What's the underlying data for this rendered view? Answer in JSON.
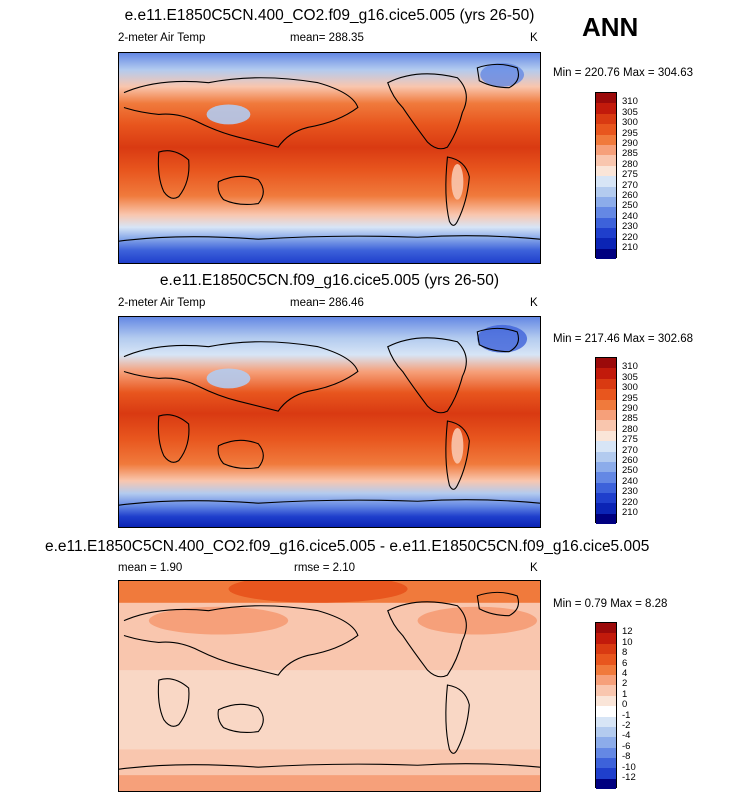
{
  "season": "ANN",
  "units": "K",
  "panels": [
    {
      "title": "e.e11.E1850C5CN.400_CO2.f09_g16.cice5.005 (yrs 26-50)",
      "left_label": "2-meter Air Temp",
      "mean_text": "mean= 288.35",
      "units": "K",
      "minmax_text": "Min = 220.76 Max = 304.63",
      "colorbar": {
        "labels": [
          "310",
          "305",
          "300",
          "295",
          "290",
          "285",
          "280",
          "275",
          "270",
          "260",
          "250",
          "240",
          "230",
          "220",
          "210"
        ],
        "colors": [
          "#9b0a0a",
          "#c21a0b",
          "#d93a12",
          "#e8561e",
          "#f07a3c",
          "#f6a07a",
          "#f9c6ae",
          "#fae5d8",
          "#d7e5f6",
          "#b3cbef",
          "#8cacea",
          "#6488e4",
          "#3d62da",
          "#1f3fcc",
          "#0b24b5",
          "#000080"
        ]
      }
    },
    {
      "title": "e.e11.E1850C5CN.f09_g16.cice5.005 (yrs 26-50)",
      "left_label": "2-meter Air Temp",
      "mean_text": "mean= 286.46",
      "units": "K",
      "minmax_text": "Min = 217.46 Max = 302.68",
      "colorbar": {
        "labels": [
          "310",
          "305",
          "300",
          "295",
          "290",
          "285",
          "280",
          "275",
          "270",
          "260",
          "250",
          "240",
          "230",
          "220",
          "210"
        ],
        "colors": [
          "#9b0a0a",
          "#c21a0b",
          "#d93a12",
          "#e8561e",
          "#f07a3c",
          "#f6a07a",
          "#f9c6ae",
          "#fae5d8",
          "#d7e5f6",
          "#b3cbef",
          "#8cacea",
          "#6488e4",
          "#3d62da",
          "#1f3fcc",
          "#0b24b5",
          "#000080"
        ]
      }
    },
    {
      "title": "e.e11.E1850C5CN.400_CO2.f09_g16.cice5.005 - e.e11.E1850C5CN.f09_g16.cice5.005",
      "left_label": "mean =   1.90",
      "mean_text": "rmse =   2.10",
      "units": "K",
      "minmax_text": "Min =  0.79 Max =   8.28",
      "colorbar": {
        "labels": [
          "12",
          "10",
          "8",
          "6",
          "4",
          "2",
          "1",
          "0",
          "-1",
          "-2",
          "-4",
          "-6",
          "-8",
          "-10",
          "-12"
        ],
        "colors": [
          "#9b0a0a",
          "#c21a0b",
          "#d93a12",
          "#e8561e",
          "#f07a3c",
          "#f6a07a",
          "#f9c6ae",
          "#fae5d8",
          "#ffffff",
          "#d7e5f6",
          "#b3cbef",
          "#8cacea",
          "#6488e4",
          "#3d62da",
          "#1f3fcc",
          "#000080"
        ]
      }
    }
  ]
}
